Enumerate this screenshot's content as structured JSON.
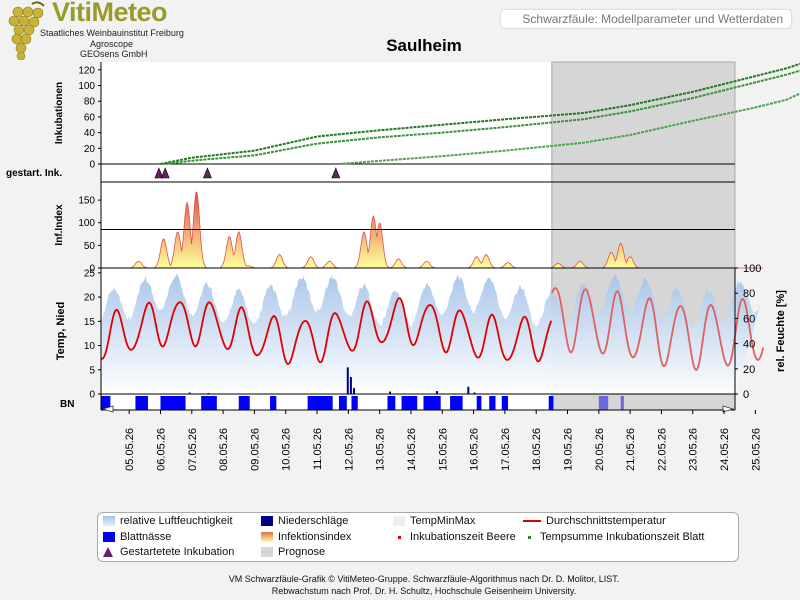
{
  "header": {
    "logo_title": "VitiMeteo",
    "logo_lines": [
      "Staatliches Weinbauinstitut Freiburg",
      "Agroscope",
      "GEOsens GmbH"
    ],
    "title": "Schwarzfäule: Modellparameter und Wetterdaten"
  },
  "colors": {
    "inkubation": "#2a8a2a",
    "forecast_bg": "#d6d6d6",
    "temperature": "#e00000",
    "temperature_forecast": "#e06060",
    "humidity": "#a6c4e8",
    "rain": "#000080",
    "blattnaesse": "#0000ff",
    "triangle": "#6a1f6a",
    "infektion_top": "#e05050",
    "infektion_bottom": "#ffff99"
  },
  "chart_data": {
    "type": "line",
    "title": "Saulheim",
    "x_dates": [
      "05.05.26",
      "06.05.26",
      "07.05.26",
      "08.05.26",
      "09.05.26",
      "10.05.26",
      "11.05.26",
      "12.05.26",
      "13.05.26",
      "14.05.26",
      "15.05.26",
      "16.05.26",
      "17.05.26",
      "18.05.26",
      "19.05.26",
      "20.05.26",
      "21.05.26",
      "22.05.26",
      "23.05.26",
      "24.05.26",
      "25.05.26"
    ],
    "forecast_start": "18.05.26 12:00",
    "panels": {
      "inkubationen": {
        "ylabel": "Inkubationen",
        "ylim": [
          0,
          130
        ],
        "yticks": [
          0,
          20,
          40,
          60,
          80,
          100,
          120
        ],
        "series": [
          {
            "start": "05.05.26 18:00",
            "points": [
              [
                1.0,
                0
              ],
              [
                2.0,
                8
              ],
              [
                4.0,
                17
              ],
              [
                6.0,
                35
              ],
              [
                8.0,
                43
              ],
              [
                10.0,
                50
              ],
              [
                12.0,
                57
              ],
              [
                14.5,
                65
              ],
              [
                16.0,
                75
              ],
              [
                18.0,
                92
              ],
              [
                20.0,
                112
              ],
              [
                21.0,
                122
              ],
              [
                21.6,
                130
              ]
            ]
          },
          {
            "start": "05.05.26 20:00",
            "points": [
              [
                1.1,
                0
              ],
              [
                2.2,
                5
              ],
              [
                4.0,
                11
              ],
              [
                6.0,
                26
              ],
              [
                8.0,
                34
              ],
              [
                10.0,
                40
              ],
              [
                12.0,
                47
              ],
              [
                14.5,
                57
              ],
              [
                16.0,
                67
              ],
              [
                18.0,
                84
              ],
              [
                20.0,
                104
              ],
              [
                21.0,
                114
              ],
              [
                21.6,
                121
              ]
            ]
          },
          {
            "start": "10.05.26 18:00",
            "points": [
              [
                6.7,
                0
              ],
              [
                8.0,
                4
              ],
              [
                10.0,
                10
              ],
              [
                12.0,
                17
              ],
              [
                14.5,
                27
              ],
              [
                16.0,
                37
              ],
              [
                18.0,
                55
              ],
              [
                20.0,
                72
              ],
              [
                21.0,
                82
              ],
              [
                21.6,
                93
              ]
            ]
          }
        ]
      },
      "gestartete_inkubation": {
        "label": "gestart. Ink.",
        "events": [
          "05.05.26 22:00",
          "06.05.26 03:00",
          "07.05.26 12:00",
          "11.05.26 12:00"
        ]
      },
      "infektionsindex": {
        "ylabel": "Inf.Index",
        "ylim": [
          0,
          190
        ],
        "yticks": [
          0,
          50,
          100,
          150
        ],
        "threshold": 85,
        "peaks": [
          {
            "day": 0.3,
            "value": 15
          },
          {
            "day": 1.1,
            "value": 65
          },
          {
            "day": 1.55,
            "value": 80
          },
          {
            "day": 1.85,
            "value": 145
          },
          {
            "day": 2.15,
            "value": 170
          },
          {
            "day": 3.2,
            "value": 70
          },
          {
            "day": 3.5,
            "value": 80
          },
          {
            "day": 3.8,
            "value": 5
          },
          {
            "day": 4.8,
            "value": 30
          },
          {
            "day": 5.8,
            "value": 25
          },
          {
            "day": 6.4,
            "value": 15
          },
          {
            "day": 7.5,
            "value": 80
          },
          {
            "day": 7.8,
            "value": 115
          },
          {
            "day": 8.0,
            "value": 100
          },
          {
            "day": 8.6,
            "value": 20
          },
          {
            "day": 9.5,
            "value": 15
          },
          {
            "day": 11.1,
            "value": 25
          },
          {
            "day": 11.4,
            "value": 30
          },
          {
            "day": 12.1,
            "value": 12
          },
          {
            "day": 13.7,
            "value": 10
          },
          {
            "day": 14.4,
            "value": 15
          },
          {
            "day": 15.4,
            "value": 35
          },
          {
            "day": 15.7,
            "value": 55
          },
          {
            "day": 16.0,
            "value": 25
          }
        ]
      },
      "wetter": {
        "ylabel_left": "Temp, Nied",
        "ylabel_right": "rel. Feuchte [%]",
        "ylim_left": [
          0,
          26
        ],
        "yticks_left": [
          0,
          5,
          10,
          15,
          20,
          25
        ],
        "ylim_right": [
          0,
          100
        ],
        "yticks_right": [
          0,
          20,
          40,
          60,
          80,
          100
        ]
      },
      "blattnaesse": {
        "label": "BN",
        "intervals": [
          [
            0.0,
            0.3
          ],
          [
            1.1,
            1.5
          ],
          [
            1.9,
            2.7
          ],
          [
            3.2,
            3.7
          ],
          [
            4.4,
            4.75
          ],
          [
            5.4,
            5.6
          ],
          [
            6.6,
            7.4
          ],
          [
            7.6,
            7.85
          ],
          [
            8.0,
            8.2
          ],
          [
            9.15,
            9.4
          ],
          [
            9.6,
            10.1
          ],
          [
            10.3,
            10.85
          ],
          [
            11.15,
            11.55
          ],
          [
            12.0,
            12.15
          ],
          [
            12.4,
            12.6
          ],
          [
            12.8,
            13.0
          ],
          [
            14.3,
            14.45
          ]
        ],
        "forecast_intervals": [
          [
            15.9,
            16.2
          ],
          [
            16.6,
            16.7
          ]
        ]
      }
    }
  },
  "legend": {
    "items": [
      {
        "label": "relative Luftfeuchtigkeit",
        "swatch": "humidity"
      },
      {
        "label": "Niederschläge",
        "swatch": "rain"
      },
      {
        "label": "TempMinMax",
        "swatch": "minmax"
      },
      {
        "label": "Durchschnittstemperatur",
        "swatch": "temp"
      },
      {
        "label": "Blattnässe",
        "swatch": "bn"
      },
      {
        "label": "Infektionsindex",
        "swatch": "infidx"
      },
      {
        "label": "Inkubationszeit Beere",
        "swatch": "dot-red"
      },
      {
        "label": "Tempsumme Inkubationszeit Blatt",
        "swatch": "dot-green"
      },
      {
        "label": "Gestartetete Inkubation",
        "swatch": "triangle"
      },
      {
        "label": "Prognose",
        "swatch": "prognose"
      }
    ]
  },
  "footer": {
    "line1": "VM Schwarzfäule-Grafik © VitiMeteo-Gruppe. Schwarzfäule-Algorithmus nach Dr. D. Molitor, LIST.",
    "line2": "Rebwachstum nach Prof. Dr. H. Schultz, Hochschule Geisenheim University."
  }
}
